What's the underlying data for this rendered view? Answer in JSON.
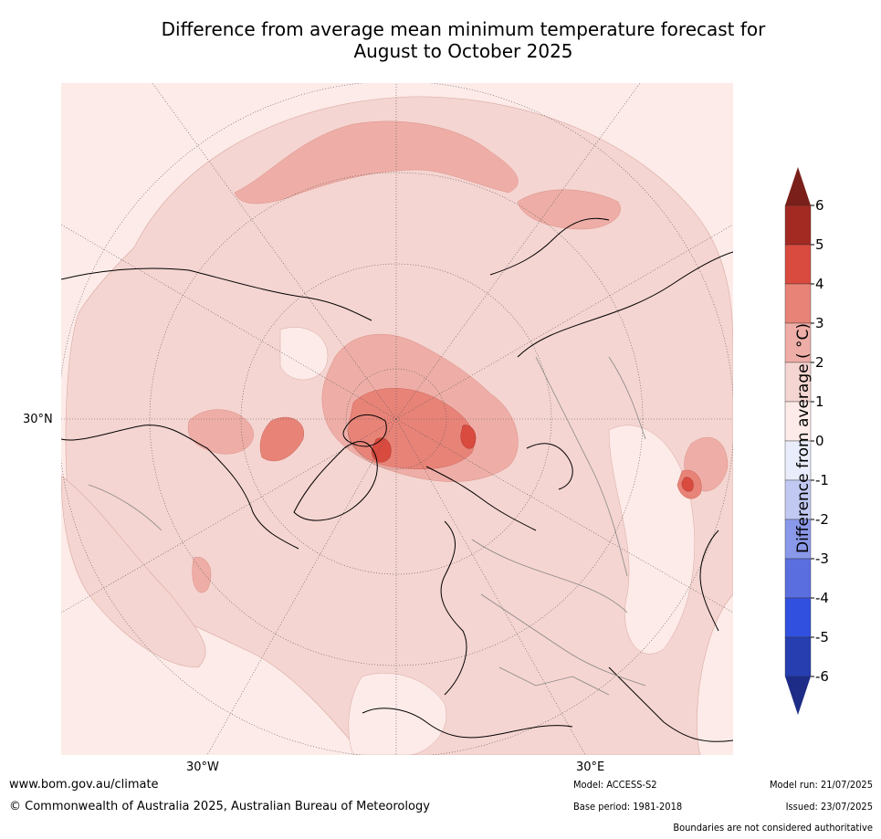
{
  "title": "Difference from average mean minimum temperature forecast for\nAugust to October 2025",
  "axis_labels": {
    "lat_30n": "30°N",
    "lon_30w": "30°W",
    "lon_30e": "30°E"
  },
  "colorbar": {
    "label": "Difference from average ( °C)",
    "ticks": [
      "6",
      "5",
      "4",
      "3",
      "2",
      "1",
      "0",
      "-1",
      "-2",
      "-3",
      "-4",
      "-5",
      "-6"
    ],
    "colors": [
      "#a32a23",
      "#d94a3f",
      "#e88378",
      "#eeaea7",
      "#f5d5d1",
      "#fcebe8",
      "#e9ecfb",
      "#c1c8f2",
      "#8a98ea",
      "#5b6ee0",
      "#3150df",
      "#263eb0"
    ],
    "over_color": "#7a1f1a",
    "under_color": "#1d2c86"
  },
  "footer": {
    "url": "www.bom.gov.au/climate",
    "copyright": "© Commonwealth of Australia 2025, Australian Bureau of Meteorology",
    "model": "Model: ACCESS-S2",
    "base_period": "Base period: 1981-2018",
    "model_run": "Model run: 21/07/2025",
    "issued": "Issued: 23/07/2025",
    "disclaimer": "Boundaries are not considered authoritative"
  }
}
